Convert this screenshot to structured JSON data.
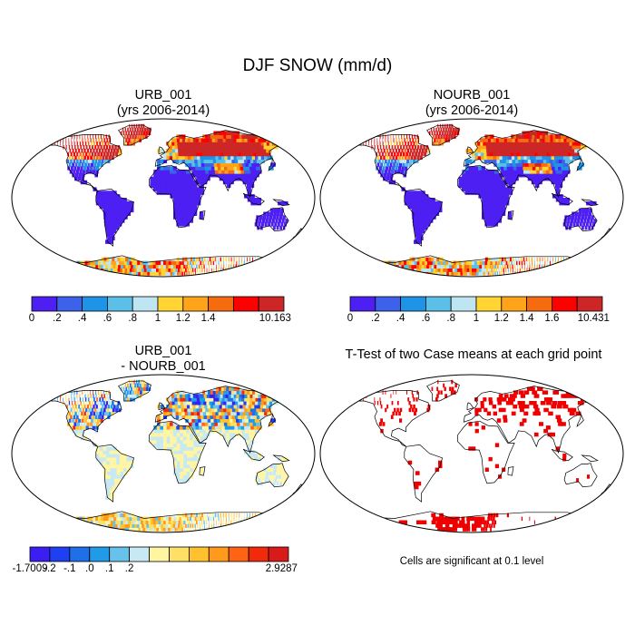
{
  "main_title": "DJF SNOW (mm/d)",
  "chart_data": [
    {
      "type": "heatmap",
      "title_line1": "URB_001",
      "title_line2": "(yrs 2006-2014)",
      "projection": "Robinson world map",
      "colorbar": {
        "colors": [
          "#4d1ff2",
          "#3b62e8",
          "#1f93e6",
          "#5cbfe8",
          "#bfe5f2",
          "#ffd433",
          "#ffa31a",
          "#f56b0f",
          "#ff0000",
          "#cc2626"
        ],
        "tick_labels": [
          "0",
          ".2",
          ".4",
          ".6",
          ".8",
          "1",
          "1.2",
          "1.4",
          "10.163"
        ],
        "tick_values": [
          0,
          0.2,
          0.4,
          0.6,
          0.8,
          1.0,
          1.2,
          1.4,
          10.163
        ]
      },
      "pattern": "snow"
    },
    {
      "type": "heatmap",
      "title_line1": "NOURB_001",
      "title_line2": "(yrs 2006-2014)",
      "projection": "Robinson world map",
      "colorbar": {
        "colors": [
          "#4d1ff2",
          "#3b62e8",
          "#1f93e6",
          "#5cbfe8",
          "#bfe5f2",
          "#ffd433",
          "#ffa31a",
          "#f56b0f",
          "#ff0000",
          "#cc2626"
        ],
        "tick_labels": [
          "0",
          ".2",
          ".4",
          ".6",
          ".8",
          "1",
          "1.2",
          "1.4",
          "1.6",
          "10.431"
        ],
        "tick_values": [
          0,
          0.2,
          0.4,
          0.6,
          0.8,
          1.0,
          1.2,
          1.4,
          1.6,
          10.431
        ]
      },
      "pattern": "snow"
    },
    {
      "type": "heatmap",
      "title_line1": "URB_001",
      "title_line2": "- NOURB_001",
      "projection": "Robinson world map",
      "colorbar": {
        "colors": [
          "#3b1ff2",
          "#1f3ff2",
          "#1f6fe8",
          "#1f9be8",
          "#66c2ea",
          "#c9e9f2",
          "#fff5a3",
          "#ffe066",
          "#ffc22e",
          "#ff9a1a",
          "#ff6414",
          "#f02a0a",
          "#d91a1a"
        ],
        "tick_labels": [
          "-1.7009",
          "-.2",
          "-.1",
          ".0",
          ".1",
          ".2",
          "2.9287"
        ],
        "tick_values": [
          -1.7009,
          -0.2,
          -0.1,
          0.0,
          0.1,
          0.2,
          2.9287
        ]
      },
      "pattern": "diff"
    },
    {
      "type": "heatmap",
      "title_line1": "T-Test of two Case means at each grid point",
      "projection": "Robinson world map",
      "significance_color": "#ee0000",
      "note": "Cells are significant at 0.1 level",
      "pattern": "sig"
    }
  ]
}
